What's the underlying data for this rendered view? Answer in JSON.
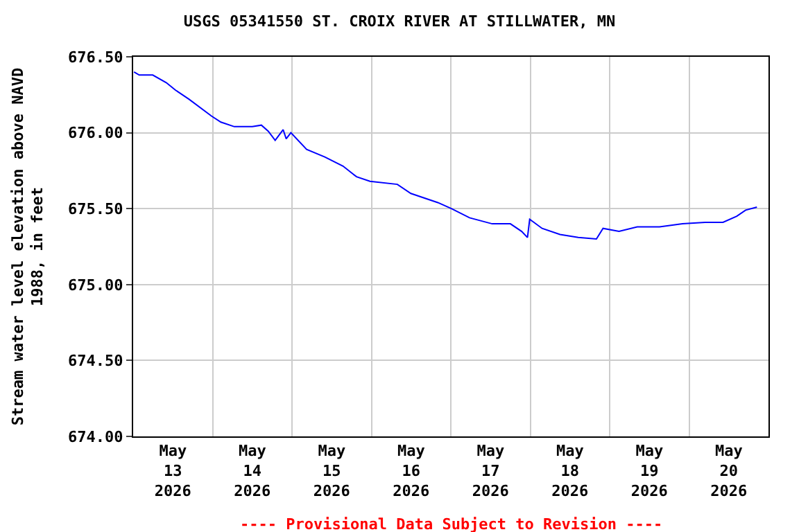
{
  "chart_data": {
    "type": "line",
    "title": "USGS 05341550 ST. CROIX RIVER AT STILLWATER, MN",
    "ylabel": "Stream water level elevation above NAVD\n1988, in feet",
    "annotations": [
      "---- Provisional Data Subject to Revision ----"
    ],
    "series": [
      {
        "color": "#0000ff",
        "x": [
          "2026-05-13T00:15",
          "2026-05-13T01:50",
          "2026-05-13T05:55",
          "2026-05-13T10:00",
          "2026-05-13T12:50",
          "2026-05-13T16:55",
          "2026-05-13T23:40",
          "2026-05-14T02:30",
          "2026-05-14T06:35",
          "2026-05-14T12:00",
          "2026-05-14T14:45",
          "2026-05-14T16:50",
          "2026-05-14T18:55",
          "2026-05-14T21:20",
          "2026-05-14T22:15",
          "2026-05-14T23:40",
          "2026-05-15T04:25",
          "2026-05-15T09:55",
          "2026-05-15T15:25",
          "2026-05-15T19:30",
          "2026-05-15T23:35",
          "2026-05-16T07:50",
          "2026-05-16T11:55",
          "2026-05-16T20:05",
          "2026-05-17T00:10",
          "2026-05-17T05:40",
          "2026-05-17T12:30",
          "2026-05-17T18:00",
          "2026-05-17T21:25",
          "2026-05-17T23:10",
          "2026-05-17T23:50",
          "2026-05-18T03:35",
          "2026-05-18T09:00",
          "2026-05-18T14:30",
          "2026-05-18T20:00",
          "2026-05-18T22:00",
          "2026-05-19T02:50",
          "2026-05-19T08:20",
          "2026-05-19T15:05",
          "2026-05-19T22:00",
          "2026-05-20T04:50",
          "2026-05-20T10:15",
          "2026-05-20T14:25",
          "2026-05-20T17:05",
          "2026-05-20T20:30"
        ],
        "values": [
          676.4,
          676.38,
          676.38,
          676.33,
          676.28,
          676.22,
          676.11,
          676.07,
          676.04,
          676.04,
          676.05,
          676.01,
          675.95,
          676.02,
          675.96,
          676.0,
          675.89,
          675.84,
          675.78,
          675.71,
          675.68,
          675.66,
          675.6,
          675.54,
          675.5,
          675.44,
          675.4,
          675.4,
          675.35,
          675.31,
          675.43,
          675.37,
          675.33,
          675.31,
          675.3,
          675.37,
          675.35,
          675.38,
          675.38,
          675.4,
          675.41,
          675.41,
          675.45,
          675.49,
          675.51
        ]
      }
    ],
    "xlim": [
      "2026-05-13T00:00",
      "2026-05-21T00:00"
    ],
    "xticks": [
      {
        "value": "2026-05-13T12:00",
        "label": "May\n13\n2026"
      },
      {
        "value": "2026-05-14T12:00",
        "label": "May\n14\n2026"
      },
      {
        "value": "2026-05-15T12:00",
        "label": "May\n15\n2026"
      },
      {
        "value": "2026-05-16T12:00",
        "label": "May\n16\n2026"
      },
      {
        "value": "2026-05-17T12:00",
        "label": "May\n17\n2026"
      },
      {
        "value": "2026-05-18T12:00",
        "label": "May\n18\n2026"
      },
      {
        "value": "2026-05-19T12:00",
        "label": "May\n19\n2026"
      },
      {
        "value": "2026-05-20T12:00",
        "label": "May\n20\n2026"
      },
      {
        "value": "2026-05-14T00:00",
        "label": null
      },
      {
        "value": "2026-05-15T00:00",
        "label": null
      },
      {
        "value": "2026-05-16T00:00",
        "label": null
      },
      {
        "value": "2026-05-17T00:00",
        "label": null
      },
      {
        "value": "2026-05-18T00:00",
        "label": null
      },
      {
        "value": "2026-05-19T00:00",
        "label": null
      },
      {
        "value": "2026-05-20T00:00",
        "label": null
      }
    ],
    "ylim": [
      674.0,
      676.5
    ],
    "yticks": [
      {
        "value": 674.0,
        "label": "674.00"
      },
      {
        "value": 674.5,
        "label": "674.50"
      },
      {
        "value": 675.0,
        "label": "675.00"
      },
      {
        "value": 675.5,
        "label": "675.50"
      },
      {
        "value": 676.0,
        "label": "676.00"
      },
      {
        "value": 676.5,
        "label": "676.50"
      }
    ],
    "grid": true,
    "line_style": "solid"
  }
}
